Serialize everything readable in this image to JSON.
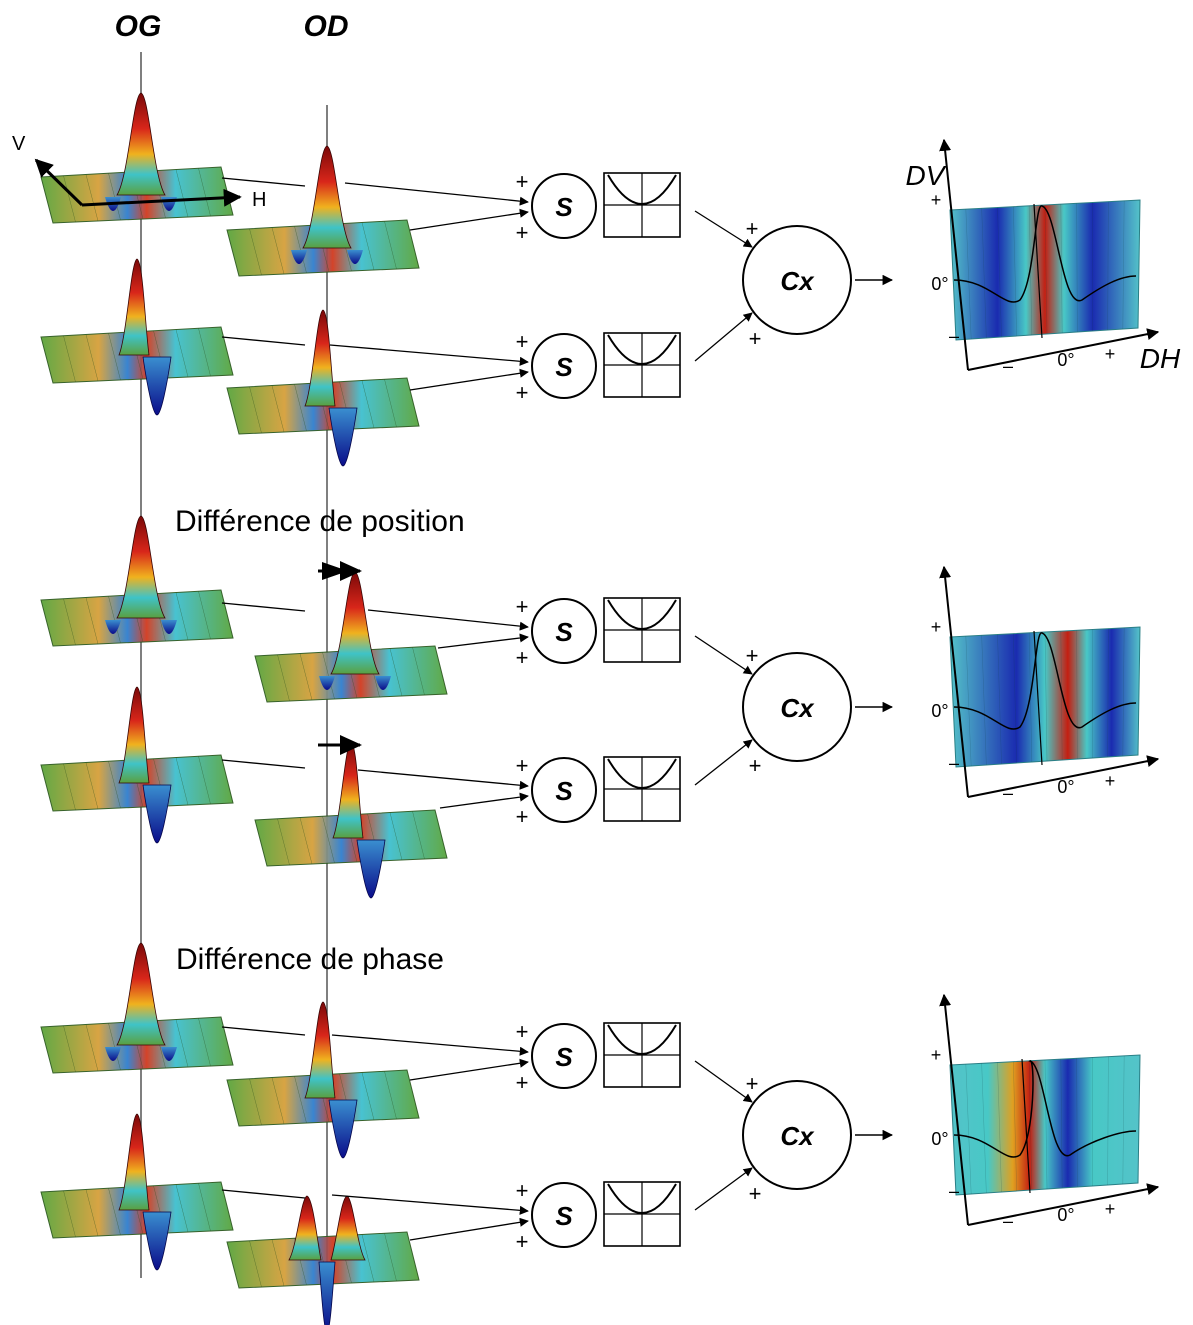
{
  "headers": {
    "left_eye": "OG",
    "right_eye": "OD"
  },
  "rf_axes": {
    "vertical": "V",
    "horizontal": "H"
  },
  "sections": [
    {
      "id": "baseline",
      "title": ""
    },
    {
      "id": "position",
      "title": "Différence de position"
    },
    {
      "id": "phase",
      "title": "Différence de phase"
    }
  ],
  "units": {
    "simple": "S",
    "complex": "Cx"
  },
  "signs": {
    "plus": "+",
    "minus": "–"
  },
  "output_axes": {
    "vertical": "DV",
    "horizontal": "DH",
    "zero": "0°",
    "plus": "+",
    "minus": "–"
  },
  "colors": {
    "peak": "#8b0a0a",
    "mid_red": "#e8341c",
    "yellow": "#f2c21c",
    "cyan": "#34c6cf",
    "blue": "#10129a",
    "baseline": "#5a9a3c"
  }
}
